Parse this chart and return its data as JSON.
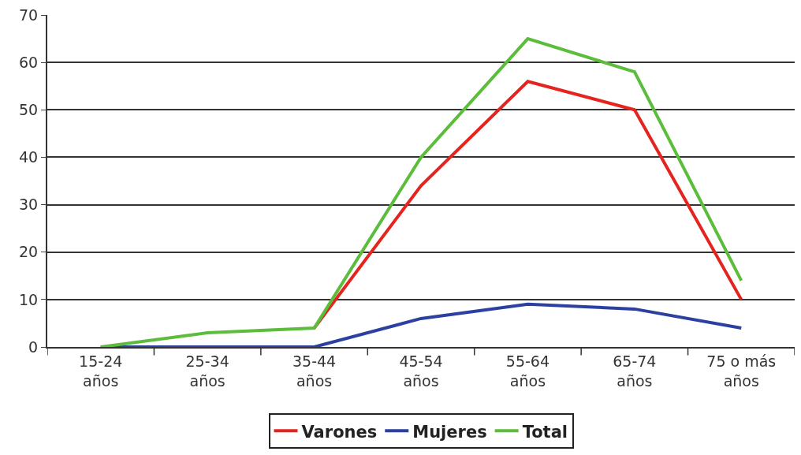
{
  "chart_data": {
    "type": "line",
    "categories": [
      "15-24 años",
      "25-34 años",
      "35-44 años",
      "45-54 años",
      "55-64 años",
      "65-74 años",
      "75 o más años"
    ],
    "series": [
      {
        "name": "Varones",
        "color": "#e52420",
        "values": [
          null,
          null,
          4,
          34,
          56,
          50,
          10
        ]
      },
      {
        "name": "Mujeres",
        "color": "#2b40a0",
        "values": [
          0,
          0,
          0,
          6,
          9,
          8,
          4
        ]
      },
      {
        "name": "Total",
        "color": "#5cbd3c",
        "values": [
          0,
          3,
          4,
          40,
          65,
          58,
          14
        ]
      }
    ],
    "ylim": [
      0,
      70
    ],
    "yticks": [
      0,
      10,
      20,
      30,
      40,
      50,
      60,
      70
    ],
    "grid": "y",
    "legend": "bottom",
    "marker": "none",
    "line_style": "solid"
  }
}
